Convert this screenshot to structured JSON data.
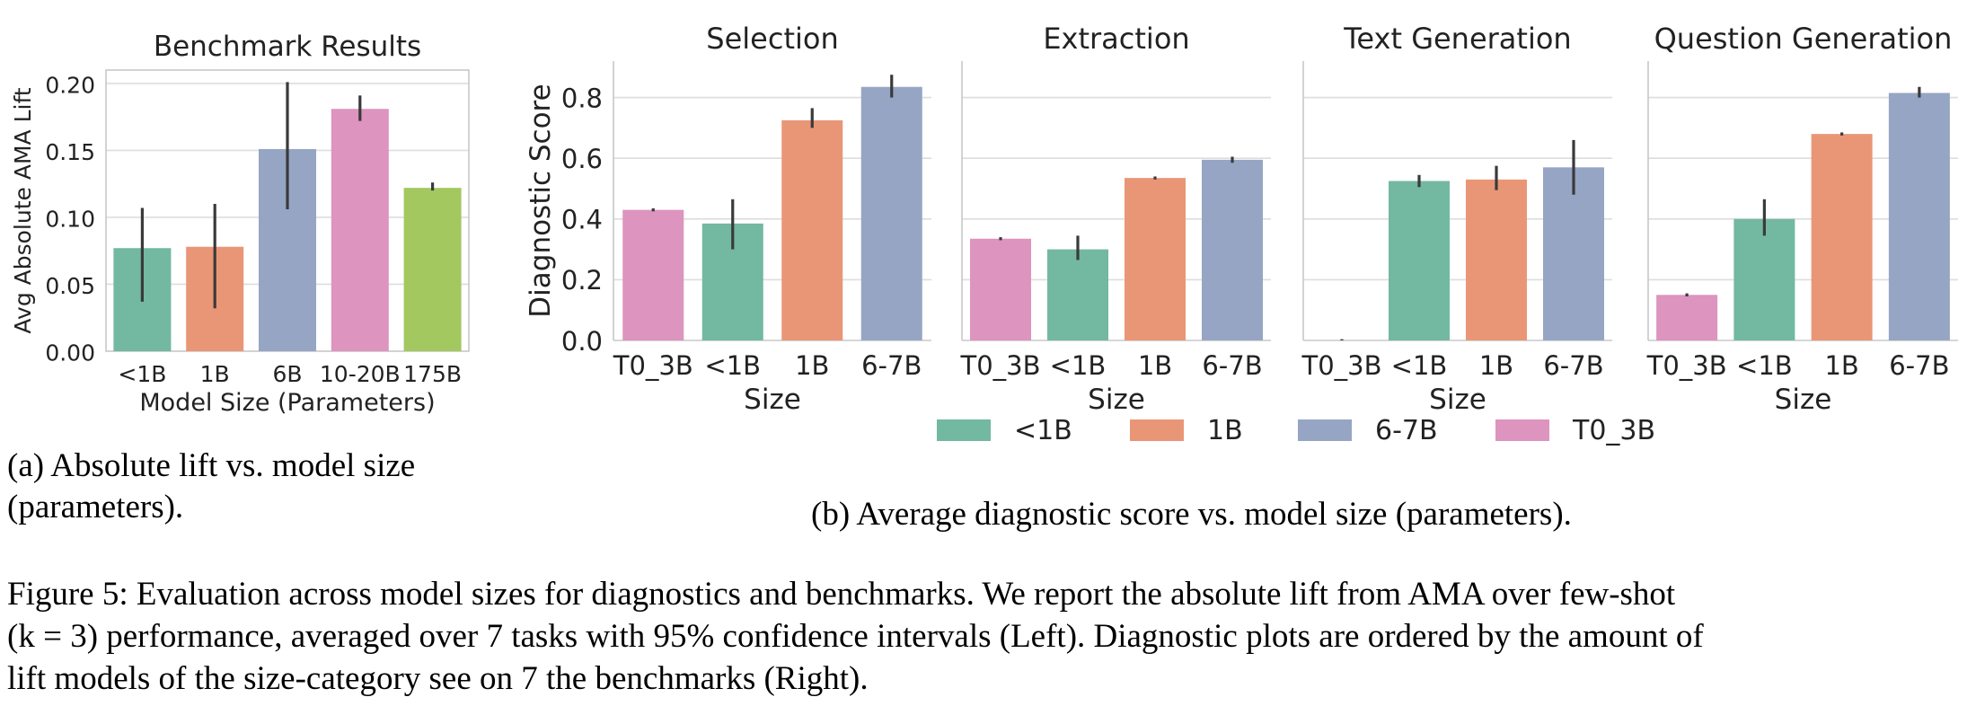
{
  "colors": {
    "<1B": "#73b8a0",
    "1B": "#e99677",
    "6-7B": "#96a5c3",
    "10-20B": "#dd94be",
    "175B": "#a3c860",
    "T0_3B": "#dd94be",
    "error": "#3a3a3a",
    "grid": "#dddddd",
    "axis": "#c8c8c8"
  },
  "chart_data": [
    {
      "id": "benchmark",
      "type": "bar",
      "title": "Benchmark Results",
      "xlabel": "Model Size (Parameters)",
      "ylabel": "Avg Absolute AMA Lift",
      "categories": [
        "<1B",
        "1B",
        "6B",
        "10-20B",
        "175B"
      ],
      "color_keys": [
        "<1B",
        "1B",
        "6-7B",
        "10-20B",
        "175B"
      ],
      "values": [
        0.077,
        0.078,
        0.151,
        0.181,
        0.122
      ],
      "ci_low": [
        0.037,
        0.032,
        0.106,
        0.172,
        0.12
      ],
      "ci_high": [
        0.107,
        0.11,
        0.201,
        0.191,
        0.126
      ],
      "ylim": [
        0,
        0.21
      ],
      "yticks": [
        "0.00",
        "0.05",
        "0.10",
        "0.15",
        "0.20"
      ],
      "grid": true
    },
    {
      "id": "selection",
      "type": "bar",
      "title": "Selection",
      "xlabel": "Size",
      "ylabel": "Diagnostic Score",
      "categories": [
        "T0_3B",
        "<1B",
        "1B",
        "6-7B"
      ],
      "values": [
        0.43,
        0.385,
        0.725,
        0.835
      ],
      "ci_low": [
        0.425,
        0.3,
        0.7,
        0.8
      ],
      "ci_high": [
        0.435,
        0.465,
        0.765,
        0.875
      ],
      "ylim": [
        0,
        0.92
      ],
      "yticks": [
        "0.0",
        "0.2",
        "0.4",
        "0.6",
        "0.8"
      ],
      "grid": true
    },
    {
      "id": "extraction",
      "type": "bar",
      "title": "Extraction",
      "xlabel": "Size",
      "categories": [
        "T0_3B",
        "<1B",
        "1B",
        "6-7B"
      ],
      "values": [
        0.335,
        0.3,
        0.535,
        0.595
      ],
      "ci_low": [
        0.33,
        0.265,
        0.53,
        0.585
      ],
      "ci_high": [
        0.34,
        0.345,
        0.54,
        0.605
      ],
      "ylim": [
        0,
        0.92
      ],
      "grid": true
    },
    {
      "id": "text-generation",
      "type": "bar",
      "title": "Text Generation",
      "xlabel": "Size",
      "categories": [
        "T0_3B",
        "<1B",
        "1B",
        "6-7B"
      ],
      "values": [
        0.0,
        0.525,
        0.53,
        0.57
      ],
      "ci_low": [
        0.0,
        0.505,
        0.495,
        0.48
      ],
      "ci_high": [
        0.004,
        0.545,
        0.575,
        0.66
      ],
      "ylim": [
        0,
        0.92
      ],
      "grid": true
    },
    {
      "id": "question-generation",
      "type": "bar",
      "title": "Question Generation",
      "xlabel": "Size",
      "categories": [
        "T0_3B",
        "<1B",
        "1B",
        "6-7B"
      ],
      "values": [
        0.15,
        0.4,
        0.68,
        0.815
      ],
      "ci_low": [
        0.145,
        0.345,
        0.675,
        0.8
      ],
      "ci_high": [
        0.155,
        0.465,
        0.685,
        0.835
      ],
      "ylim": [
        0,
        0.92
      ],
      "grid": true
    }
  ],
  "legend": {
    "entries": [
      {
        "label": "<1B",
        "color_key": "<1B"
      },
      {
        "label": "1B",
        "color_key": "1B"
      },
      {
        "label": "6-7B",
        "color_key": "6-7B"
      },
      {
        "label": "T0_3B",
        "color_key": "T0_3B"
      }
    ],
    "placement": "bottom-center"
  },
  "captions": {
    "a": "(a) Absolute lift vs. model size (parameters).",
    "b": "(b) Average diagnostic score vs. model size (parameters).",
    "main": [
      "Figure 5: Evaluation across model sizes for diagnostics and benchmarks.  We report the absolute lift from AMA over few-shot",
      "(k = 3) performance, averaged over 7 tasks with 95% confidence intervals (Left). Diagnostic plots are ordered by the amount of",
      "lift models of the size-category see on 7 the benchmarks (Right)."
    ]
  }
}
